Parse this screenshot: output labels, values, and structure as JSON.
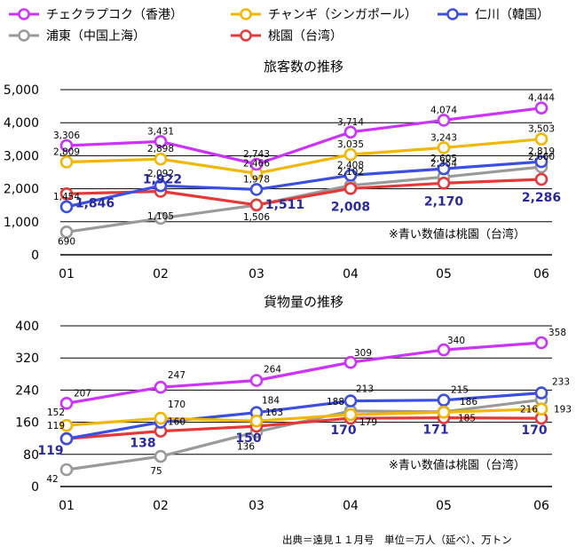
{
  "legend": [
    {
      "name": "チェクラプコク（香港）",
      "color": "#cc33ff"
    },
    {
      "name": "チャンギ（シンガポール）",
      "color": "#f2b705"
    },
    {
      "name": "仁川（韓国）",
      "color": "#3c4fe0"
    },
    {
      "name": "浦東（中国上海）",
      "color": "#9a9a9a"
    },
    {
      "name": "桃園（台湾）",
      "color": "#e53939"
    }
  ],
  "chart_data": [
    {
      "type": "line",
      "title": "旅客数の推移",
      "categories": [
        "01",
        "02",
        "03",
        "04",
        "05",
        "06"
      ],
      "ylim": [
        0,
        5000
      ],
      "yticks": [
        "0",
        "1,000",
        "2,000",
        "3,000",
        "4,000",
        "5,000"
      ],
      "grid": true,
      "note": "※青い数値は桃園（台湾）",
      "series": [
        {
          "name": "チェクラプコク（香港）",
          "color": "#cc33ff",
          "values": [
            3306,
            3431,
            2743,
            3714,
            4074,
            4444
          ],
          "labels": [
            "3,306",
            "3,431",
            "2,743",
            "3,714",
            "4,074",
            "4,444"
          ]
        },
        {
          "name": "チャンギ（シンガポール）",
          "color": "#f2b705",
          "values": [
            2809,
            2898,
            2466,
            3035,
            3243,
            3503
          ],
          "labels": [
            "2,809",
            "2,898",
            "2,466",
            "3,035",
            "3,243",
            "3,503"
          ]
        },
        {
          "name": "仁川（韓国）",
          "color": "#3c4fe0",
          "values": [
            1454,
            2092,
            1978,
            2408,
            2605,
            2819
          ],
          "labels": [
            "1,454",
            "2,092",
            "1,978",
            "2,408",
            "2,605",
            "2,819"
          ]
        },
        {
          "name": "浦東（中国上海）",
          "color": "#9a9a9a",
          "values": [
            690,
            1105,
            1506,
            2102,
            2354,
            2660
          ],
          "labels": [
            "690",
            "1,105",
            "1,506",
            "2,102",
            "2,354",
            "2,660"
          ]
        },
        {
          "name": "桃園（台湾）",
          "color": "#e53939",
          "values": [
            1846,
            1922,
            1511,
            2008,
            2170,
            2286
          ],
          "labels": [
            "1,846",
            "1,922",
            "1,511",
            "2,008",
            "2,170",
            "2,286"
          ]
        }
      ]
    },
    {
      "type": "line",
      "title": "貨物量の推移",
      "categories": [
        "01",
        "02",
        "03",
        "04",
        "05",
        "06"
      ],
      "ylim": [
        0,
        400
      ],
      "yticks": [
        "0",
        "80",
        "160",
        "240",
        "320",
        "400"
      ],
      "grid": true,
      "note": "※青い数値は桃園（台湾）",
      "series": [
        {
          "name": "チェクラプコク（香港）",
          "color": "#cc33ff",
          "values": [
            207,
            247,
            264,
            309,
            340,
            358
          ],
          "labels": [
            "207",
            "247",
            "264",
            "309",
            "340",
            "358"
          ]
        },
        {
          "name": "チャンギ（シンガポール）",
          "color": "#f2b705",
          "values": [
            152,
            170,
            163,
            179,
            185,
            193
          ],
          "labels": [
            "152",
            "170",
            "163",
            "179",
            "185",
            "193"
          ]
        },
        {
          "name": "仁川（韓国）",
          "color": "#3c4fe0",
          "values": [
            119,
            160,
            184,
            213,
            215,
            233
          ],
          "labels": [
            "119",
            "160",
            "184",
            "213",
            "215",
            "233"
          ]
        },
        {
          "name": "浦東（中国上海）",
          "color": "#9a9a9a",
          "values": [
            42,
            75,
            136,
            188,
            186,
            216
          ],
          "labels": [
            "42",
            "75",
            "136",
            "188",
            "186",
            "216"
          ]
        },
        {
          "name": "桃園（台湾）",
          "color": "#e53939",
          "values": [
            119,
            138,
            150,
            170,
            171,
            170
          ],
          "labels": [
            "119",
            "138",
            "150",
            "170",
            "171",
            "170"
          ]
        }
      ]
    }
  ],
  "source": "出典＝遠見１１月号　単位＝万人（延べ）、万トン"
}
